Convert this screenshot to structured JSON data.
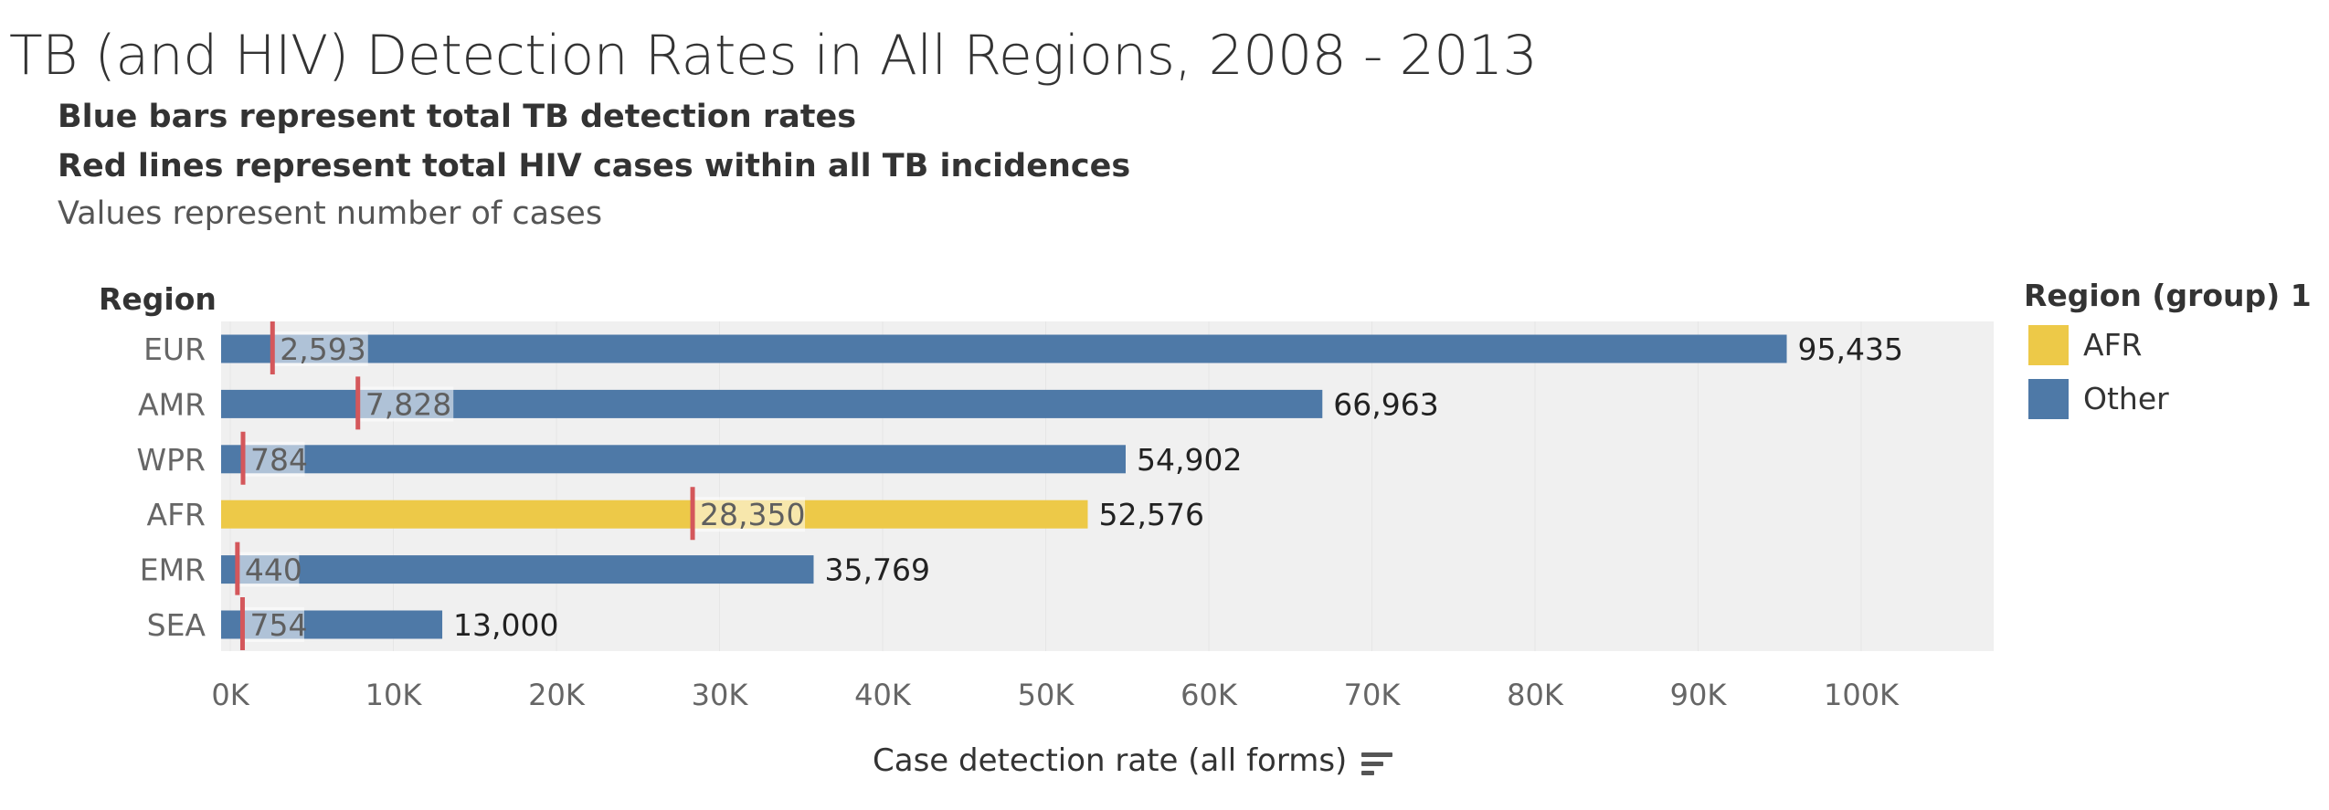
{
  "header": {
    "title": "TB (and HIV) Detection Rates in All Regions, 2008 - 2013",
    "subtitle_lines": [
      "Blue bars represent total TB detection rates",
      "Red lines represent total HIV cases within all TB incidences",
      "Values represent number of cases"
    ]
  },
  "legend": {
    "title": "Region (group) 1",
    "items": [
      {
        "label": "AFR",
        "color": "#EDC948"
      },
      {
        "label": "Other",
        "color": "#4E79A7"
      }
    ]
  },
  "colors": {
    "other": "#4E79A7",
    "afr": "#EDC948",
    "hiv_line": "#D4575B",
    "plot_bg": "#F0F0F0"
  },
  "chart_data": {
    "type": "bar",
    "orientation": "horizontal",
    "row_header": "Region",
    "xlabel": "Case detection rate (all forms)",
    "xlim": [
      0,
      108000
    ],
    "x_ticks": [
      0,
      10000,
      20000,
      30000,
      40000,
      50000,
      60000,
      70000,
      80000,
      90000,
      100000
    ],
    "x_tick_labels": [
      "0K",
      "10K",
      "20K",
      "30K",
      "40K",
      "50K",
      "60K",
      "70K",
      "80K",
      "90K",
      "100K"
    ],
    "categories": [
      "EUR",
      "AMR",
      "WPR",
      "AFR",
      "EMR",
      "SEA"
    ],
    "series": [
      {
        "name": "Case detection rate (all forms)",
        "values": [
          95435,
          66963,
          54902,
          52576,
          35769,
          13000
        ],
        "labels": [
          "95,435",
          "66,963",
          "54,902",
          "52,576",
          "35,769",
          "13,000"
        ]
      },
      {
        "name": "HIV cases within TB incidences",
        "values": [
          2593,
          7828,
          784,
          28350,
          440,
          754
        ],
        "labels": [
          "2,593",
          "7,828",
          "784",
          "28,350",
          "440",
          "754"
        ]
      }
    ],
    "bar_groups": [
      "Other",
      "Other",
      "Other",
      "AFR",
      "Other",
      "Other"
    ]
  }
}
